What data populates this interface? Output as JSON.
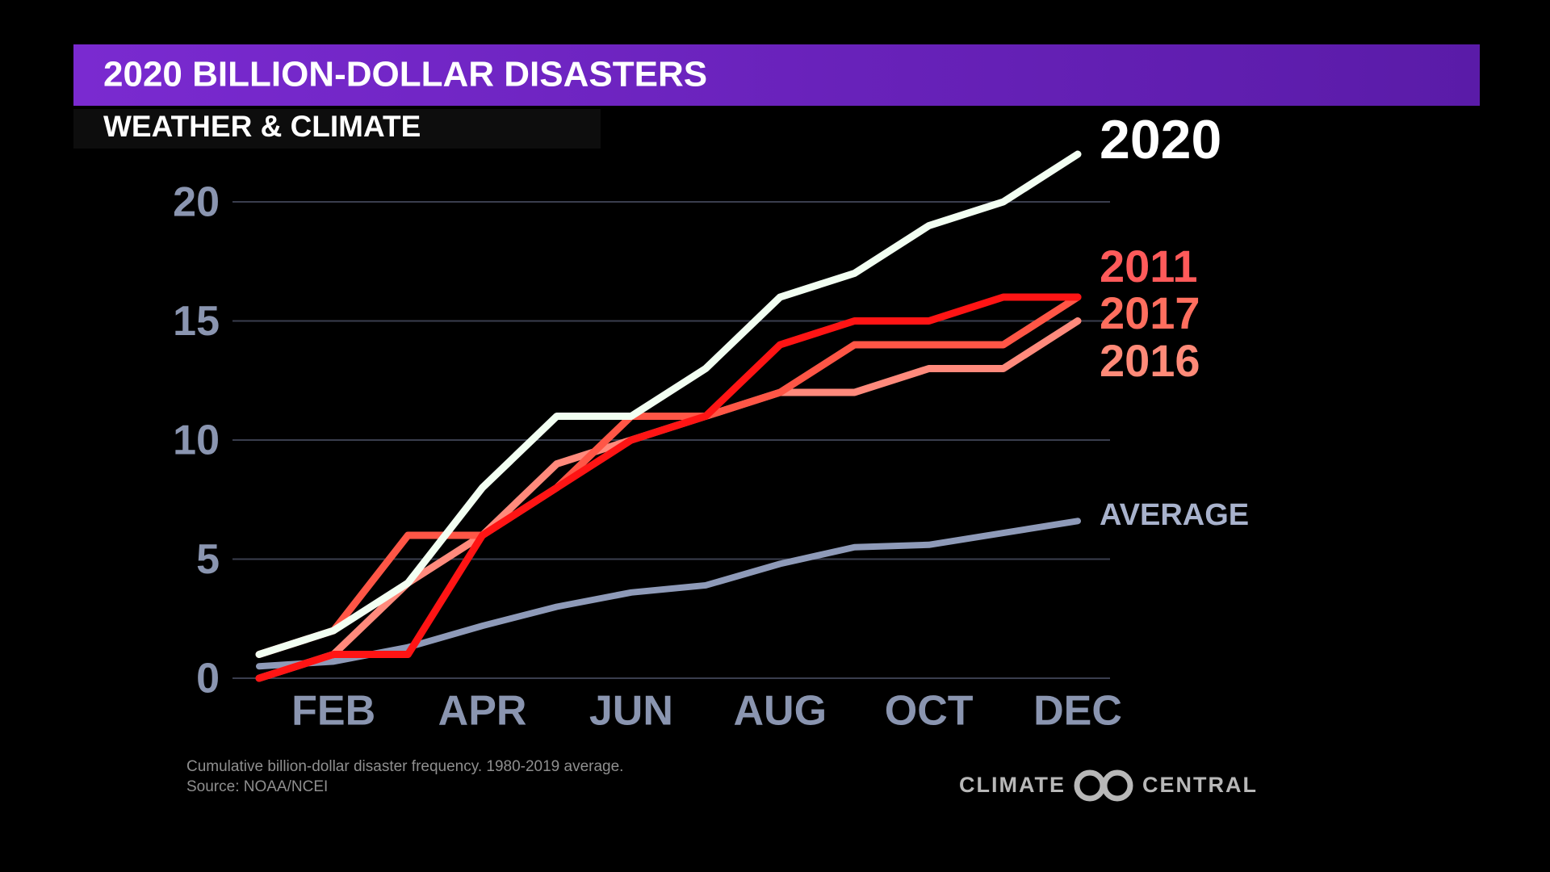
{
  "chart_data": {
    "type": "line",
    "title": "2020 BILLION-DOLLAR DISASTERS",
    "subtitle": "WEATHER & CLIMATE",
    "categories": [
      null,
      "FEB",
      null,
      "APR",
      null,
      "JUN",
      null,
      "AUG",
      null,
      "OCT",
      null,
      "DEC"
    ],
    "series": [
      {
        "name": "2020",
        "color": "#f2fff2",
        "values": [
          1,
          2,
          4,
          8,
          11,
          11,
          13,
          16,
          17,
          19,
          20,
          22
        ]
      },
      {
        "name": "2011",
        "color": "#ff1414",
        "values": [
          0,
          1,
          1,
          6,
          8,
          10,
          11,
          14,
          15,
          15,
          16,
          16
        ]
      },
      {
        "name": "2017",
        "color": "#ff5646",
        "values": [
          1,
          2,
          6,
          6,
          8,
          11,
          11,
          12,
          14,
          14,
          14,
          16
        ]
      },
      {
        "name": "2016",
        "color": "#ff8a7c",
        "values": [
          0,
          1,
          4,
          6,
          9,
          10,
          11,
          12,
          12,
          13,
          13,
          15
        ]
      },
      {
        "name": "AVERAGE",
        "color": "#8e9ab8",
        "values": [
          0.5,
          0.7,
          1.3,
          2.2,
          3.0,
          3.6,
          3.9,
          4.8,
          5.5,
          5.6,
          6.1,
          6.6
        ]
      }
    ],
    "ylim": [
      0,
      20
    ],
    "yticks": [
      0,
      5,
      10,
      15,
      20
    ],
    "grid": true,
    "notes": [
      "Cumulative billion-dollar disaster frequency. 1980-2019 average.",
      "Source: NOAA/NCEI"
    ],
    "logo": {
      "left": "CLIMATE",
      "right": "CENTRAL"
    }
  }
}
